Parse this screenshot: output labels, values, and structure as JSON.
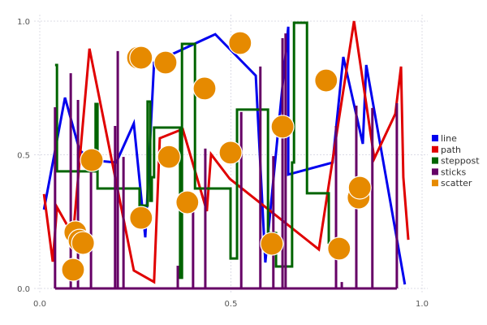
{
  "chart_data": {
    "type": "line",
    "title": "",
    "xlabel": "",
    "ylabel": "",
    "xlim": [
      0,
      1
    ],
    "ylim": [
      0,
      1
    ],
    "grid": true,
    "legend_placement": "right",
    "x_ticks": [
      "0.0",
      "0.5",
      "1.0"
    ],
    "y_ticks": [
      "0.0",
      "0.5",
      "1.0"
    ],
    "series": [
      {
        "name": "line",
        "kind": "line",
        "color": "#0000ee",
        "x": [
          0.011,
          0.066,
          0.104,
          0.136,
          0.2,
          0.246,
          0.276,
          0.299,
          0.459,
          0.565,
          0.59,
          0.65,
          0.65,
          0.766,
          0.794,
          0.845,
          0.854,
          0.955
        ],
        "y": [
          0.295,
          0.714,
          0.517,
          0.48,
          0.471,
          0.617,
          0.191,
          0.845,
          0.951,
          0.796,
          0.097,
          0.979,
          0.426,
          0.471,
          0.866,
          0.541,
          0.836,
          0.015
        ]
      },
      {
        "name": "path",
        "kind": "path",
        "color": "#e00000",
        "x": [
          0.011,
          0.034,
          0.045,
          0.087,
          0.13,
          0.246,
          0.299,
          0.314,
          0.374,
          0.437,
          0.448,
          0.497,
          0.73,
          0.822,
          0.875,
          0.93,
          0.945,
          0.951,
          0.964
        ],
        "y": [
          0.353,
          0.1,
          0.304,
          0.198,
          0.897,
          0.067,
          0.024,
          0.562,
          0.596,
          0.289,
          0.502,
          0.41,
          0.146,
          1.0,
          0.486,
          0.653,
          0.83,
          0.416,
          0.182
        ]
      },
      {
        "name": "steppost",
        "kind": "steppost",
        "color": "#006400",
        "x": [
          0.04,
          0.045,
          0.146,
          0.151,
          0.261,
          0.282,
          0.289,
          0.293,
          0.299,
          0.367,
          0.372,
          0.406,
          0.499,
          0.516,
          0.597,
          0.618,
          0.66,
          0.665,
          0.699,
          0.756
        ],
        "y": [
          0.836,
          0.438,
          0.69,
          0.374,
          0.31,
          0.699,
          0.328,
          0.416,
          0.602,
          0.04,
          0.915,
          0.374,
          0.112,
          0.669,
          0.207,
          0.082,
          0.471,
          0.994,
          0.356,
          0.167
        ]
      },
      {
        "name": "sticks",
        "kind": "sticks",
        "color": "#660066",
        "x": [
          0.04,
          0.081,
          0.1,
          0.134,
          0.197,
          0.204,
          0.219,
          0.361,
          0.401,
          0.433,
          0.527,
          0.577,
          0.611,
          0.635,
          0.643,
          0.775,
          0.79,
          0.828,
          0.87,
          0.934
        ],
        "y": [
          0.678,
          0.805,
          0.705,
          0.435,
          0.608,
          0.888,
          0.492,
          0.085,
          0.31,
          0.523,
          0.66,
          0.83,
          0.495,
          0.936,
          0.954,
          0.608,
          0.024,
          0.684,
          0.675,
          0.693
        ]
      },
      {
        "name": "scatter",
        "kind": "scatter",
        "color": "#e68a00",
        "x": [
          0.093,
          0.104,
          0.113,
          0.087,
          0.136,
          0.257,
          0.265,
          0.329,
          0.265,
          0.338,
          0.386,
          0.431,
          0.499,
          0.524,
          0.635,
          0.607,
          0.749,
          0.783,
          0.834,
          0.837
        ],
        "y": [
          0.21,
          0.179,
          0.17,
          0.07,
          0.48,
          0.863,
          0.863,
          0.845,
          0.264,
          0.492,
          0.322,
          0.748,
          0.508,
          0.918,
          0.605,
          0.167,
          0.778,
          0.149,
          0.34,
          0.377
        ]
      }
    ]
  }
}
